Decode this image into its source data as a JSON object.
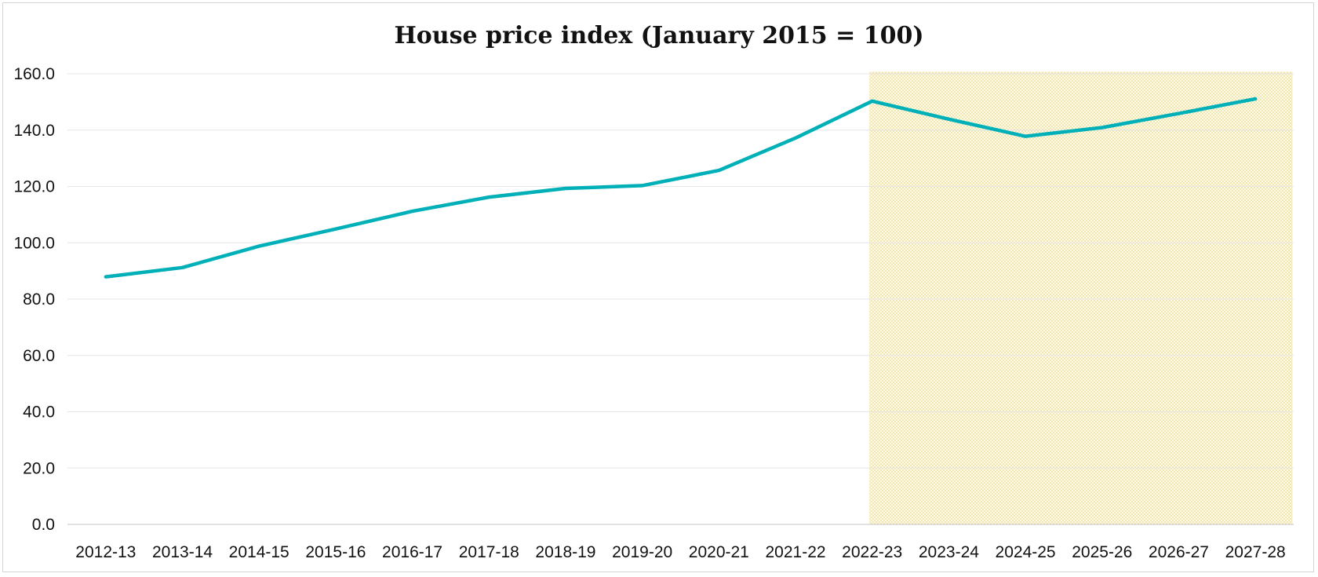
{
  "chart_data": {
    "type": "line",
    "title": "House price index (January 2015 = 100)",
    "xlabel": "",
    "ylabel": "",
    "categories": [
      "2012-13",
      "2013-14",
      "2014-15",
      "2015-16",
      "2016-17",
      "2017-18",
      "2018-19",
      "2019-20",
      "2020-21",
      "2021-22",
      "2022-23",
      "2023-24",
      "2024-25",
      "2025-26",
      "2026-27",
      "2027-28"
    ],
    "series": [
      {
        "values": [
          87.9,
          91.2,
          98.8,
          104.9,
          111.2,
          116.2,
          119.3,
          120.3,
          125.7,
          137.2,
          150.3,
          143.9,
          137.8,
          140.9,
          145.9,
          151.1
        ],
        "color": "#00b0b9"
      }
    ],
    "ylim": [
      0,
      160
    ],
    "yticks": [
      "0.0",
      "20.0",
      "40.0",
      "60.0",
      "80.0",
      "100.0",
      "120.0",
      "140.0",
      "160.0"
    ],
    "grid": true,
    "legend": "none",
    "forecast_shading": {
      "from_category": "2022-23",
      "to_category": "2027-28",
      "color": "#f0e09a"
    }
  }
}
